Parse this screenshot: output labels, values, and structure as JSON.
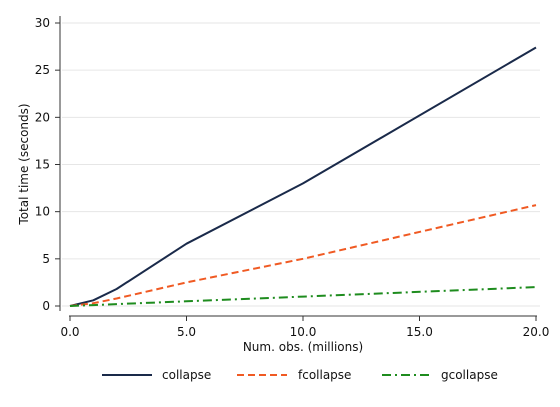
{
  "chart_data": {
    "type": "line",
    "xlabel": "Num. obs. (millions)",
    "ylabel": "Total time (seconds)",
    "xlim": [
      0,
      20
    ],
    "ylim": [
      0,
      30
    ],
    "x_ticks": [
      0,
      5,
      10,
      15,
      20
    ],
    "x_tick_labels": [
      "0.0",
      "5.0",
      "10.0",
      "15.0",
      "20.0"
    ],
    "y_ticks": [
      0,
      5,
      10,
      15,
      20,
      25,
      30
    ],
    "y_tick_labels": [
      "0",
      "5",
      "10",
      "15",
      "20",
      "25",
      "30"
    ],
    "grid": "horizontal",
    "legend_position": "bottom",
    "series": [
      {
        "name": "collapse",
        "color": "#1a2a4a",
        "line_style": "solid",
        "x": [
          0.0,
          1.0,
          2.0,
          5.0,
          10.0,
          20.0
        ],
        "y": [
          0.0,
          0.6,
          1.8,
          6.6,
          13.0,
          27.4
        ]
      },
      {
        "name": "fcollapse",
        "color": "#f05a23",
        "line_style": "dashed",
        "x": [
          0.0,
          1.0,
          2.0,
          5.0,
          10.0,
          20.0
        ],
        "y": [
          0.0,
          0.3,
          0.8,
          2.5,
          5.0,
          10.7
        ]
      },
      {
        "name": "gcollapse",
        "color": "#1e8c1e",
        "line_style": "dash-dot",
        "x": [
          0.0,
          1.0,
          2.0,
          5.0,
          10.0,
          20.0
        ],
        "y": [
          0.0,
          0.1,
          0.2,
          0.5,
          1.0,
          2.0
        ]
      }
    ]
  }
}
